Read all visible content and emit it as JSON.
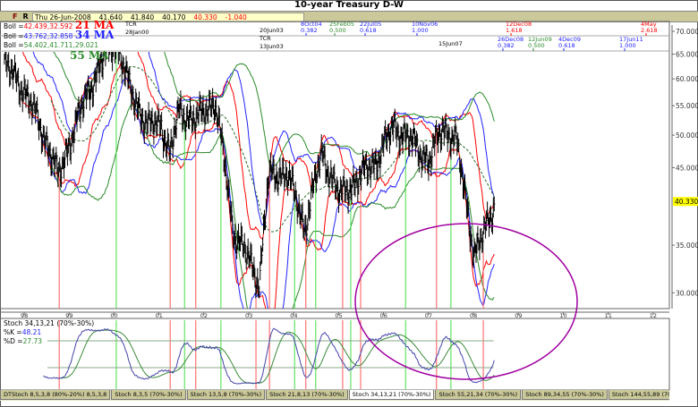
{
  "title": "10-year Treasury D-W",
  "toolbar": {
    "f": "F",
    "r": "R",
    "date": "Thu 26-Jun-2008",
    "open": "41.640",
    "high": "41.840",
    "low": "40.170",
    "close": "40.330",
    "change": "-1.040"
  },
  "legend": {
    "boll21_label": "Boll =",
    "boll21_values": "42.439,32.592",
    "ma21": "21 MA",
    "boll34_label": "Boll =",
    "boll34_values": "43.762,32.858",
    "ma34": "34 MA",
    "boll55_label": "Boll =",
    "boll55_values": "54.402,41.711,29.021",
    "ma55": "55 MA"
  },
  "annotations": {
    "tcr1": "TCR",
    "tcr1_date": "28Jan00",
    "date_20jun03": "20Jun03",
    "tcr2": "TCR",
    "tcr2_date": "13Jun03",
    "date_15jun07": "15Jun07",
    "fib_row1": [
      {
        "date": "8Oct04",
        "ratio": "0.382",
        "color": "#2222ff"
      },
      {
        "date": "25Feb05",
        "ratio": "0.500",
        "color": "#2a8a2a"
      },
      {
        "date": "22Jul05",
        "ratio": "0.618",
        "color": "#2222ff"
      },
      {
        "date": "10Nov06",
        "ratio": "1.000",
        "color": "#2222ff"
      },
      {
        "date": "12Dec08",
        "ratio": "1.618",
        "color": "#ff0000"
      },
      {
        "date": "4May",
        "ratio": "2.618",
        "color": "#ff0000"
      }
    ],
    "fib_row2": [
      {
        "date": "26Dec08",
        "ratio": "0.382",
        "color": "#2222ff"
      },
      {
        "date": "12Jun09",
        "ratio": "0.500",
        "color": "#2a8a2a"
      },
      {
        "date": "4Dec09",
        "ratio": "0.618",
        "color": "#2222ff"
      },
      {
        "date": "17Jun11",
        "ratio": "1.000",
        "color": "#2222ff"
      }
    ]
  },
  "stoch": {
    "title": "Stoch 34,13,21 (70%-30%)",
    "k_label": "%K =",
    "k_value": "48.21",
    "d_label": "%D =",
    "d_value": "27.73"
  },
  "tabs": [
    "DTStoch 8,5,3,8 (80%-20%) 8,5,3,8",
    "Stoch 8,3,5 (70%-30%)",
    "Stoch 13,5,8 (70%-30%)",
    "Stoch 21,8,13 (70%-30%)",
    "Stoch 34,13,21 (70%-30%)",
    "Stoch 55,21,34 (70%-30%)",
    "Stoch 89,34,55 (70%-30%)",
    "Stoch 144,55,89 (70%-30%)",
    "Stoch 55,13,55 (70%-30%)"
  ],
  "active_tab": 4,
  "colors": {
    "boll21": "#ff0000",
    "boll34": "#2222ff",
    "boll55": "#2a8a2a",
    "price": "#000000",
    "stoch_k": "#4444aa",
    "stoch_d": "#3a8a3a",
    "ellipse": "#a000a0",
    "last_price_highlight": "#ffff00"
  },
  "chart_data": {
    "type": "line",
    "title": "10-year Treasury D-W",
    "y_scale": "log",
    "ylim": [
      28,
      72
    ],
    "y_ticks": [
      "70.000",
      "65.000",
      "60.000",
      "55.000",
      "50.000",
      "45.000",
      "35.000",
      "30.000"
    ],
    "y_tick_values": [
      70,
      65,
      60,
      55,
      50,
      45,
      35,
      30
    ],
    "last_price_label": "40.330",
    "last_price": 40.33,
    "x_ticks": [
      "98",
      "99",
      "00",
      "01",
      "02",
      "03",
      "04",
      "05",
      "06",
      "07",
      "08",
      "09",
      "10",
      "11",
      "12"
    ],
    "x_tick_years": [
      1998,
      1999,
      2000,
      2001,
      2002,
      2003,
      2004,
      2005,
      2006,
      2007,
      2008,
      2009,
      2010,
      2011,
      2012
    ],
    "close_keypoints": [
      [
        1997.56,
        63
      ],
      [
        1998.0,
        58
      ],
      [
        1998.66,
        46
      ],
      [
        1998.76,
        43.5
      ],
      [
        1999.06,
        50
      ],
      [
        1999.45,
        58
      ],
      [
        1999.85,
        65.6
      ],
      [
        2000.05,
        68
      ],
      [
        2000.35,
        58
      ],
      [
        2000.75,
        51.5
      ],
      [
        2001.05,
        52
      ],
      [
        2001.25,
        47
      ],
      [
        2001.45,
        54
      ],
      [
        2001.84,
        52.5
      ],
      [
        2002.24,
        56
      ],
      [
        2002.64,
        37
      ],
      [
        2002.94,
        34
      ],
      [
        2003.24,
        31
      ],
      [
        2003.44,
        43.5
      ],
      [
        2003.84,
        44.5
      ],
      [
        2004.24,
        37
      ],
      [
        2004.63,
        47
      ],
      [
        2005.03,
        41
      ],
      [
        2005.43,
        43.5
      ],
      [
        2005.83,
        46
      ],
      [
        2006.23,
        51.5
      ],
      [
        2006.63,
        49
      ],
      [
        2007.02,
        46
      ],
      [
        2007.32,
        51.5
      ],
      [
        2007.62,
        49
      ],
      [
        2007.82,
        41
      ],
      [
        2008.02,
        34
      ],
      [
        2008.22,
        36
      ],
      [
        2008.48,
        40.33
      ]
    ],
    "bollinger_periods": [
      21,
      34,
      55
    ],
    "red_signal_years": [
      1998.78,
      2001.25,
      2001.82,
      2003.16,
      2003.46,
      2004.27,
      2005.09,
      2005.49,
      2007.18,
      2008.22
    ],
    "green_signal_years": [
      2000.05,
      2001.57,
      2002.38,
      2004.02,
      2004.49,
      2005.27,
      2006.49,
      2007.5
    ],
    "stoch_levels": [
      70,
      30
    ],
    "stoch_ylim": [
      0,
      100
    ]
  }
}
